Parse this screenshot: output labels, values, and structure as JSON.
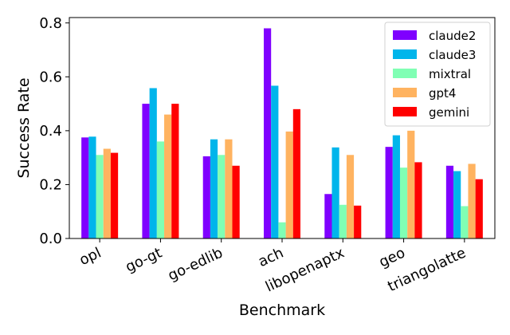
{
  "chart_data": {
    "type": "bar",
    "title": "",
    "xlabel": "Benchmark",
    "ylabel": "Success Rate",
    "ylim": [
      0,
      0.82
    ],
    "yticks": [
      "0.0",
      "0.2",
      "0.4",
      "0.6",
      "0.8"
    ],
    "grid": false,
    "legend_position": "top-right",
    "categories": [
      "opl",
      "go-gt",
      "go-edlib",
      "ach",
      "libopenaptx",
      "geo",
      "triangolatte"
    ],
    "series": [
      {
        "name": "claude2",
        "color": "#7f00ff",
        "values": [
          0.375,
          0.5,
          0.305,
          0.78,
          0.165,
          0.34,
          0.27
        ]
      },
      {
        "name": "claude3",
        "color": "#00b5eb",
        "values": [
          0.378,
          0.558,
          0.368,
          0.567,
          0.338,
          0.383,
          0.25
        ]
      },
      {
        "name": "mixtral",
        "color": "#80ffb4",
        "values": [
          0.31,
          0.36,
          0.31,
          0.06,
          0.125,
          0.263,
          0.12
        ]
      },
      {
        "name": "gpt4",
        "color": "#ffb360",
        "values": [
          0.333,
          0.46,
          0.368,
          0.397,
          0.31,
          0.4,
          0.277
        ]
      },
      {
        "name": "gemini",
        "color": "#ff0000",
        "values": [
          0.318,
          0.5,
          0.27,
          0.48,
          0.122,
          0.283,
          0.22
        ]
      }
    ]
  }
}
